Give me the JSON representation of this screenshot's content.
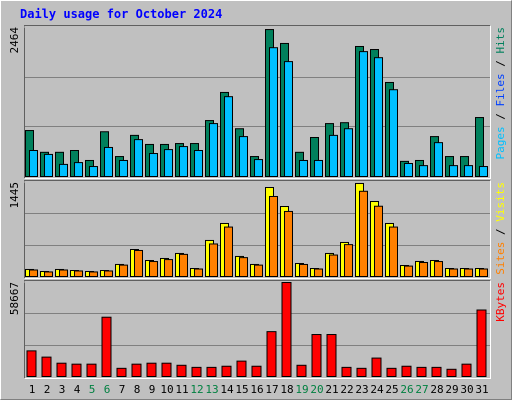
{
  "title": "Daily usage for October 2024",
  "chart_data": [
    {
      "type": "bar",
      "ylim": [
        0,
        2464
      ],
      "yticks": [
        2464
      ],
      "legend": [
        {
          "label": "Pages",
          "color": "#00c0ff"
        },
        {
          "label": "Files",
          "color": "#0040ff"
        },
        {
          "label": "Hits",
          "color": "#00805c"
        }
      ],
      "series": [
        {
          "color": "#00805c",
          "values": [
            760,
            400,
            400,
            430,
            265,
            740,
            330,
            680,
            530,
            530,
            545,
            545,
            925,
            1390,
            790,
            330,
            2430,
            2200,
            400,
            645,
            875,
            890,
            2150,
            2100,
            1555,
            250,
            265,
            660,
            330,
            330,
            975
          ]
        },
        {
          "color": "#00c0ff",
          "values": [
            430,
            365,
            200,
            230,
            165,
            480,
            265,
            610,
            380,
            445,
            495,
            430,
            875,
            1320,
            660,
            280,
            2130,
            1900,
            265,
            265,
            680,
            790,
            2065,
            1965,
            1435,
            215,
            180,
            560,
            180,
            180,
            165
          ]
        }
      ]
    },
    {
      "type": "bar",
      "ylim": [
        0,
        1445
      ],
      "yticks": [
        1445
      ],
      "legend": [
        {
          "label": "Sites",
          "color": "#ff8000"
        },
        {
          "label": "Visits",
          "color": "#ffff00"
        }
      ],
      "series": [
        {
          "color": "#ffff00",
          "values": [
            108,
            77,
            108,
            92,
            77,
            92,
            185,
            415,
            246,
            277,
            354,
            123,
            554,
            815,
            308,
            185,
            1368,
            1076,
            200,
            123,
            354,
            523,
            1430,
            1153,
            815,
            169,
            231,
            246,
            123,
            123,
            123
          ]
        },
        {
          "color": "#ff8000",
          "values": [
            100,
            70,
            100,
            85,
            70,
            85,
            175,
            400,
            230,
            260,
            340,
            115,
            500,
            760,
            290,
            175,
            1230,
            1000,
            185,
            115,
            330,
            490,
            1310,
            1080,
            760,
            160,
            215,
            230,
            115,
            115,
            115
          ]
        }
      ]
    },
    {
      "type": "bar",
      "ylim": [
        0,
        58667
      ],
      "yticks": [
        58667
      ],
      "legend": [
        {
          "label": "KBytes",
          "color": "#ff0000"
        }
      ],
      "categories": [
        "1",
        "2",
        "3",
        "4",
        "5",
        "6",
        "7",
        "8",
        "9",
        "10",
        "11",
        "12",
        "13",
        "14",
        "15",
        "16",
        "17",
        "18",
        "19",
        "20",
        "21",
        "22",
        "23",
        "24",
        "25",
        "26",
        "27",
        "28",
        "29",
        "30",
        "31"
      ],
      "weekend_indices": [
        4,
        5,
        11,
        12,
        18,
        19,
        25,
        26
      ],
      "weekend_label_color": "#008040",
      "series": [
        {
          "color": "#ff0000",
          "values": [
            16000,
            12100,
            8300,
            7700,
            7700,
            37000,
            5100,
            7700,
            8300,
            8300,
            7000,
            5700,
            5700,
            6400,
            9600,
            6400,
            28000,
            58667,
            7000,
            26200,
            26200,
            5700,
            5100,
            11500,
            5100,
            6400,
            5700,
            5700,
            4500,
            7700,
            41500
          ]
        }
      ]
    }
  ]
}
